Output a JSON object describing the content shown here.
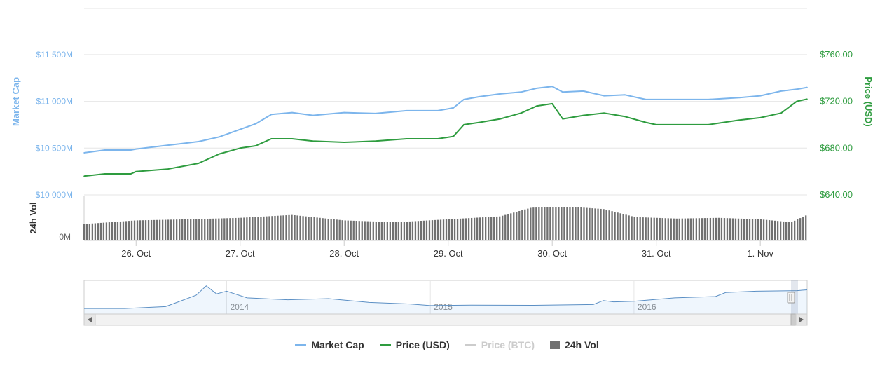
{
  "chart_data": {
    "type": "line",
    "series": [
      {
        "name": "Market Cap",
        "axis": "left",
        "color": "#7cb5ec",
        "unit": "M",
        "x": [
          25.5,
          25.7,
          25.85,
          25.95,
          26.0,
          26.3,
          26.6,
          26.8,
          27.0,
          27.15,
          27.3,
          27.5,
          27.7,
          28.0,
          28.3,
          28.6,
          28.9,
          29.05,
          29.15,
          29.3,
          29.5,
          29.7,
          29.85,
          30.0,
          30.1,
          30.3,
          30.5,
          30.7,
          30.9,
          31.0,
          31.2,
          31.5,
          31.8,
          32.0,
          32.2,
          32.35,
          32.45
        ],
        "values": [
          10450,
          10480,
          10480,
          10480,
          10490,
          10530,
          10570,
          10620,
          10700,
          10760,
          10860,
          10880,
          10850,
          10880,
          10870,
          10900,
          10900,
          10930,
          11020,
          11050,
          11080,
          11100,
          11140,
          11160,
          11100,
          11110,
          11060,
          11070,
          11020,
          11020,
          11020,
          11020,
          11040,
          11060,
          11110,
          11130,
          11150
        ]
      },
      {
        "name": "Price (USD)",
        "axis": "right",
        "color": "#2e9c3f",
        "unit": "USD",
        "x": [
          25.5,
          25.7,
          25.85,
          25.95,
          26.0,
          26.3,
          26.6,
          26.8,
          27.0,
          27.15,
          27.3,
          27.5,
          27.7,
          28.0,
          28.3,
          28.6,
          28.9,
          29.05,
          29.15,
          29.3,
          29.5,
          29.7,
          29.85,
          30.0,
          30.1,
          30.3,
          30.5,
          30.7,
          30.9,
          31.0,
          31.2,
          31.5,
          31.8,
          32.0,
          32.2,
          32.35,
          32.45
        ],
        "values": [
          656,
          658,
          658,
          658,
          660,
          662,
          667,
          675,
          680,
          682,
          688,
          688,
          686,
          685,
          686,
          688,
          688,
          690,
          700,
          702,
          705,
          710,
          716,
          718,
          705,
          708,
          710,
          707,
          702,
          700,
          700,
          700,
          704,
          706,
          710,
          720,
          722
        ]
      },
      {
        "name": "Price (BTC)",
        "axis": "none",
        "color": "#cccccc",
        "visible": false,
        "x": [],
        "values": []
      },
      {
        "name": "24h Vol",
        "type": "bar",
        "color": "#707070",
        "x": [
          25.5,
          26.0,
          26.5,
          27.0,
          27.5,
          28.0,
          28.5,
          29.0,
          29.5,
          29.8,
          30.2,
          30.5,
          30.8,
          31.2,
          31.6,
          32.0,
          32.3,
          32.45
        ],
        "values": [
          0.45,
          0.55,
          0.58,
          0.62,
          0.7,
          0.55,
          0.5,
          0.58,
          0.66,
          0.9,
          0.92,
          0.86,
          0.64,
          0.6,
          0.62,
          0.58,
          0.5,
          0.7
        ]
      }
    ],
    "left_axis": {
      "title": "Market Cap",
      "ticks": [
        "$10 000M",
        "$10 500M",
        "$11 000M",
        "$11 500M"
      ],
      "range": [
        10000,
        11500
      ],
      "color": "#7cb5ec"
    },
    "right_axis": {
      "title": "Price (USD)",
      "ticks": [
        "$640.00",
        "$680.00",
        "$720.00",
        "$760.00"
      ],
      "range": [
        640,
        760
      ],
      "color": "#2e9c3f"
    },
    "volume_axis": {
      "title": "24h Vol",
      "ticks": [
        "0M"
      ]
    },
    "x_axis": {
      "ticks": [
        "26. Oct",
        "27. Oct",
        "28. Oct",
        "29. Oct",
        "30. Oct",
        "31. Oct",
        "1. Nov"
      ],
      "tick_days": [
        26,
        27,
        28,
        29,
        30,
        31,
        32
      ],
      "range": [
        25.5,
        32.45
      ]
    },
    "grid": true,
    "legend": "bottom-center",
    "navigator": {
      "labels": [
        "2014",
        "2015",
        "2016"
      ],
      "label_years": [
        2014,
        2015,
        2016
      ],
      "range": [
        2013.3,
        2016.85
      ],
      "x": [
        2013.3,
        2013.5,
        2013.7,
        2013.85,
        2013.9,
        2013.95,
        2014.0,
        2014.1,
        2014.3,
        2014.5,
        2014.7,
        2014.9,
        2015.0,
        2015.2,
        2015.5,
        2015.8,
        2015.85,
        2015.9,
        2016.0,
        2016.2,
        2016.4,
        2016.45,
        2016.6,
        2016.8,
        2016.85
      ],
      "values": [
        0.05,
        0.05,
        0.12,
        0.55,
        0.9,
        0.6,
        0.7,
        0.45,
        0.38,
        0.42,
        0.28,
        0.22,
        0.16,
        0.18,
        0.17,
        0.2,
        0.35,
        0.3,
        0.32,
        0.45,
        0.5,
        0.65,
        0.7,
        0.72,
        0.75
      ]
    }
  }
}
